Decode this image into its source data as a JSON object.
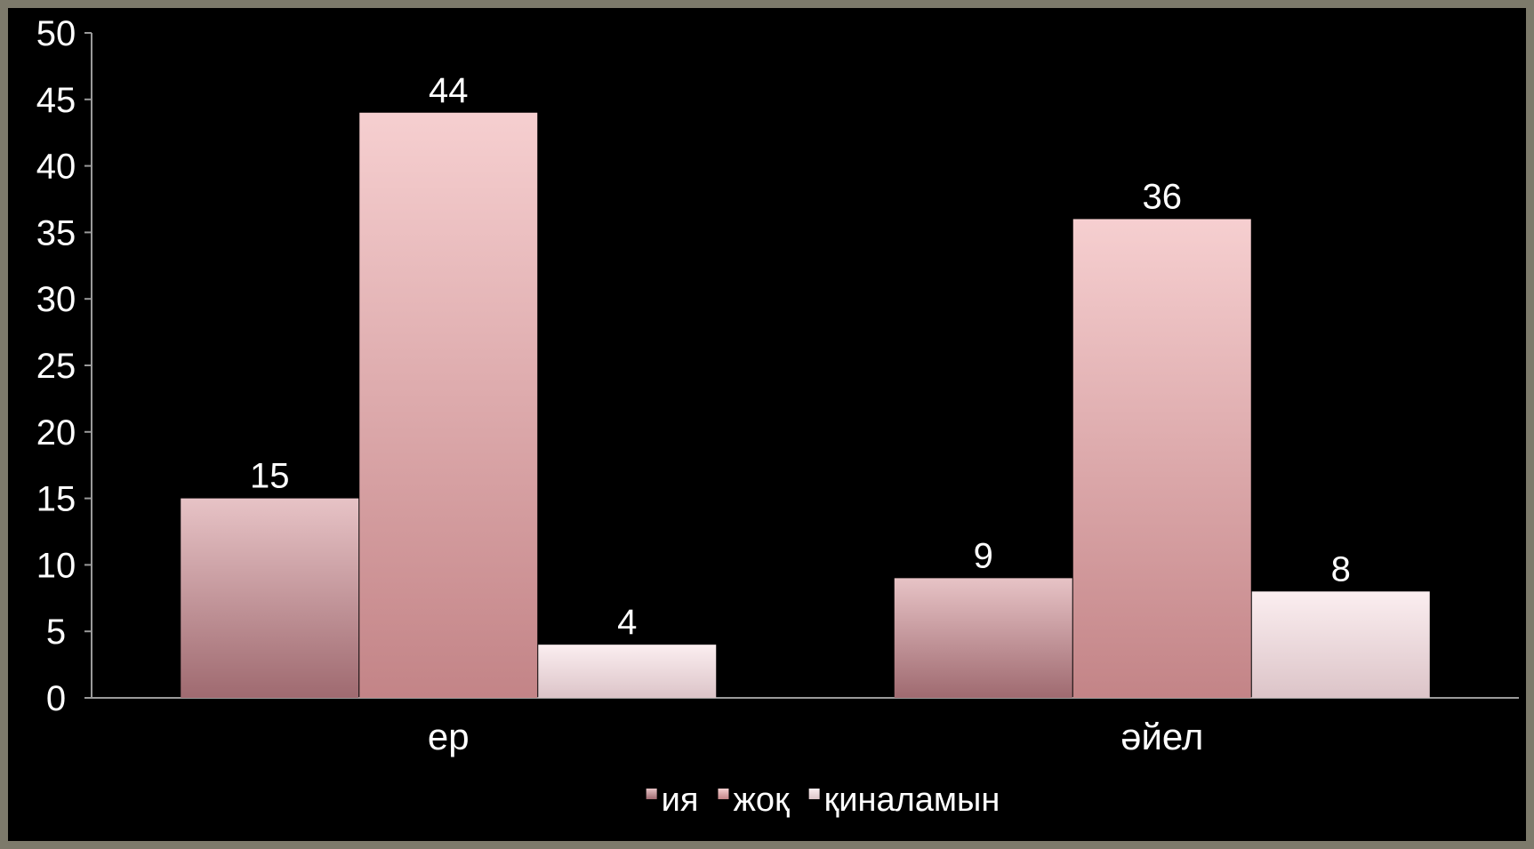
{
  "chart_data": {
    "type": "bar",
    "categories": [
      "ер",
      "әйел"
    ],
    "series": [
      {
        "name": "ия",
        "values": [
          15,
          9
        ],
        "color_top": "#e7c3c6",
        "color_bottom": "#9f6a70"
      },
      {
        "name": "жоқ",
        "values": [
          44,
          36
        ],
        "color_top": "#f6cfd0",
        "color_bottom": "#c38487"
      },
      {
        "name": "қиналамын",
        "values": [
          4,
          8
        ],
        "color_top": "#fbeef0",
        "color_bottom": "#dcc4c8"
      }
    ],
    "ylim": [
      0,
      50
    ],
    "yticks": [
      0,
      5,
      10,
      15,
      20,
      25,
      30,
      35,
      40,
      45,
      50
    ],
    "grid": false,
    "legend_position": "bottom",
    "data_labels": true
  }
}
